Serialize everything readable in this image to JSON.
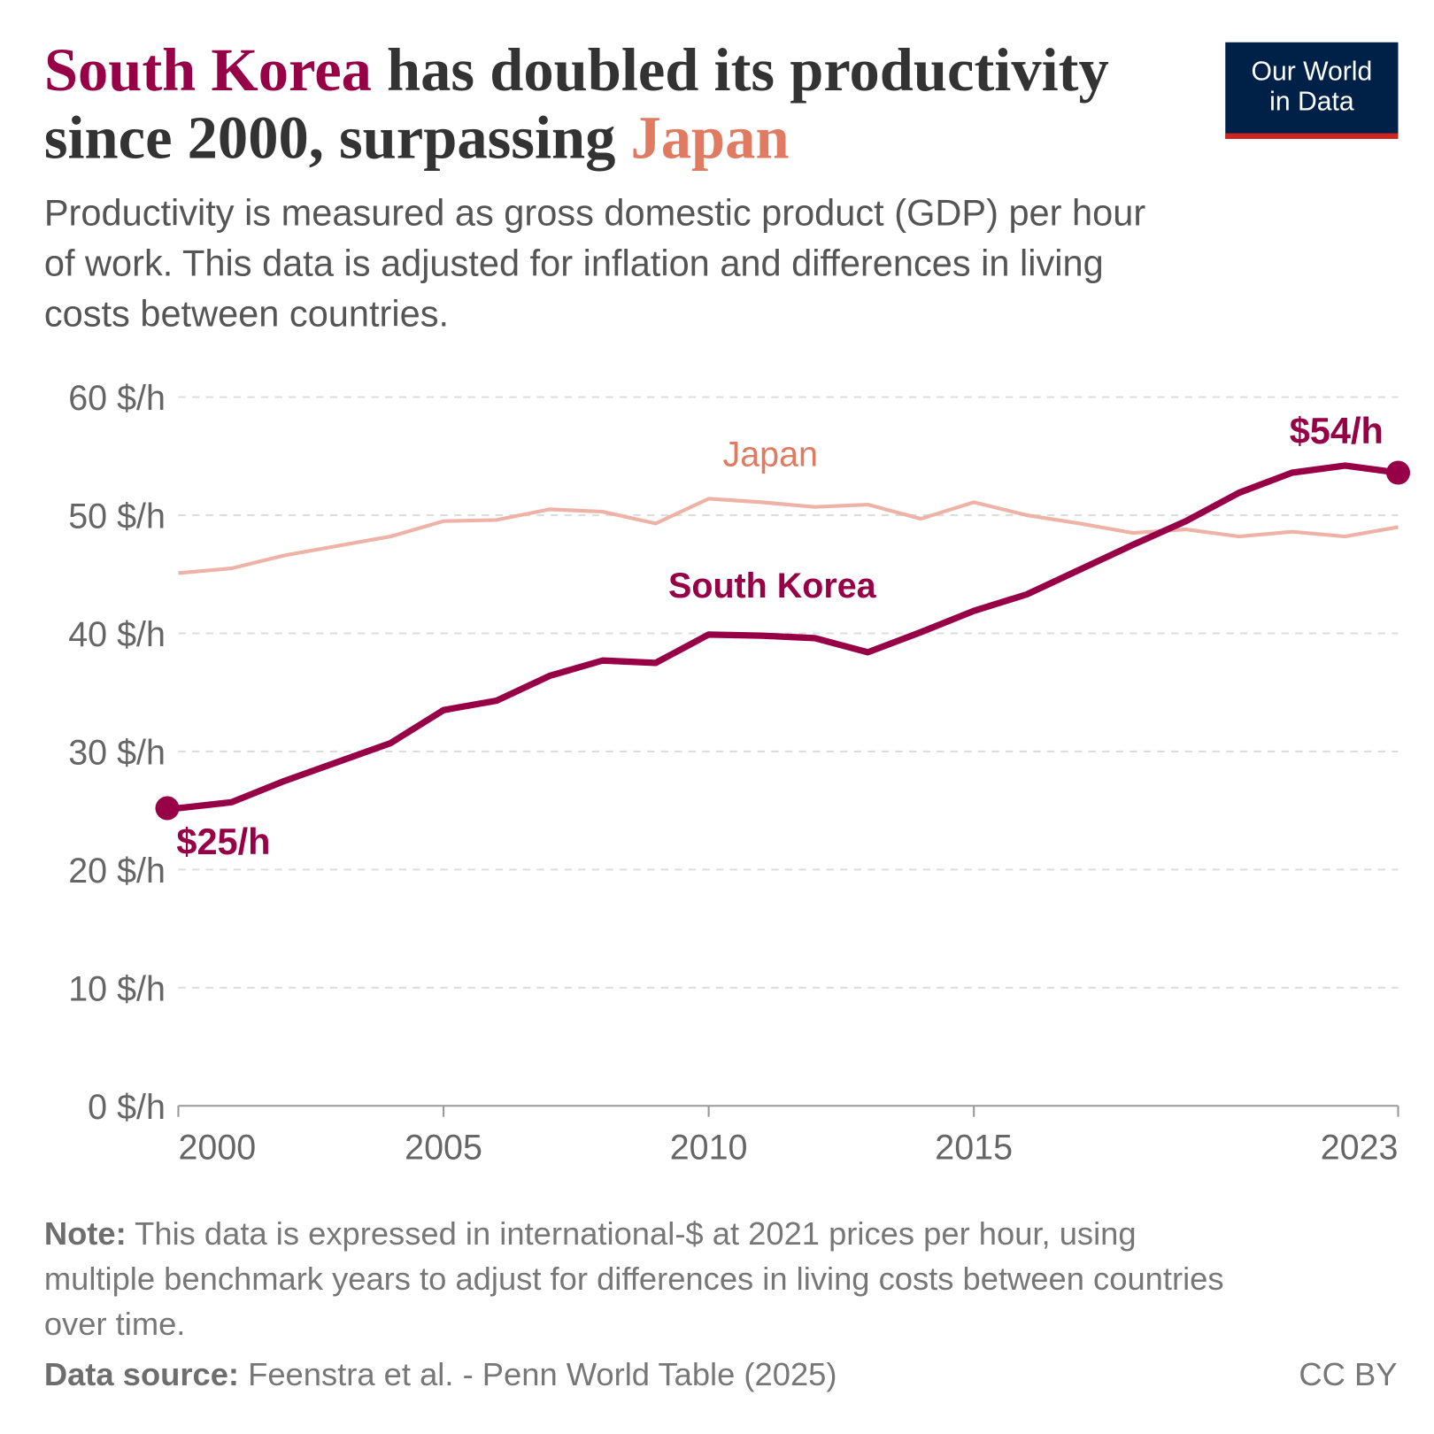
{
  "logo": [
    "Our World",
    "in Data"
  ],
  "chart_data": {
    "type": "line",
    "title_parts": [
      "South Korea",
      "has doubled its productivity since 2000, surpassing",
      "Japan"
    ],
    "subtitle": "Productivity is measured as gross domestic product (GDP) per hour of work. This data is adjusted for inflation and differences in living costs between countries.",
    "x": [
      2000,
      2001,
      2002,
      2003,
      2004,
      2005,
      2006,
      2007,
      2008,
      2009,
      2010,
      2011,
      2012,
      2013,
      2014,
      2015,
      2016,
      2017,
      2018,
      2019,
      2020,
      2021,
      2022,
      2023
    ],
    "series": [
      {
        "name": "Japan",
        "color": "#eeb3a6",
        "label_color": "#e07b62",
        "values": [
          45.1,
          45.5,
          46.6,
          47.4,
          48.2,
          49.5,
          49.6,
          50.5,
          50.3,
          49.3,
          51.4,
          51.1,
          50.7,
          50.9,
          49.7,
          51.1,
          50.0,
          49.3,
          48.5,
          48.8,
          48.2,
          48.6,
          48.2,
          49.0
        ]
      },
      {
        "name": "South Korea",
        "color": "#970046",
        "label_color": "#970046",
        "values": [
          25.2,
          25.7,
          27.5,
          29.1,
          30.7,
          33.5,
          34.3,
          36.4,
          37.7,
          37.5,
          39.9,
          39.8,
          39.6,
          38.4,
          40.1,
          41.9,
          43.3,
          45.4,
          47.5,
          49.5,
          51.9,
          53.6,
          54.2,
          53.6
        ],
        "value_labels": [
          "$25/h",
          null,
          null,
          null,
          null,
          null,
          null,
          null,
          null,
          null,
          null,
          null,
          null,
          null,
          null,
          null,
          null,
          null,
          null,
          null,
          null,
          null,
          null,
          "$54/h"
        ]
      }
    ],
    "xlim": [
      2000,
      2023
    ],
    "xticks": [
      2000,
      2005,
      2010,
      2015,
      2023
    ],
    "ylim": [
      0,
      60
    ],
    "yticks": [
      {
        "value": 0,
        "label": "0 $/h"
      },
      {
        "value": 10,
        "label": "10 $/h"
      },
      {
        "value": 20,
        "label": "20 $/h"
      },
      {
        "value": 30,
        "label": "30 $/h"
      },
      {
        "value": 40,
        "label": "40 $/h"
      },
      {
        "value": 50,
        "label": "50 $/h"
      },
      {
        "value": 60,
        "label": "60 $/h"
      }
    ],
    "grid": true,
    "note_label": "Note:",
    "note": "This data is expressed in international-$ at 2021 prices per hour, using multiple benchmark years to adjust for differences in living costs between countries over time.",
    "source_label": "Data source:",
    "source": "Feenstra et al. - Penn World Table (2025)",
    "license": "CC BY"
  }
}
